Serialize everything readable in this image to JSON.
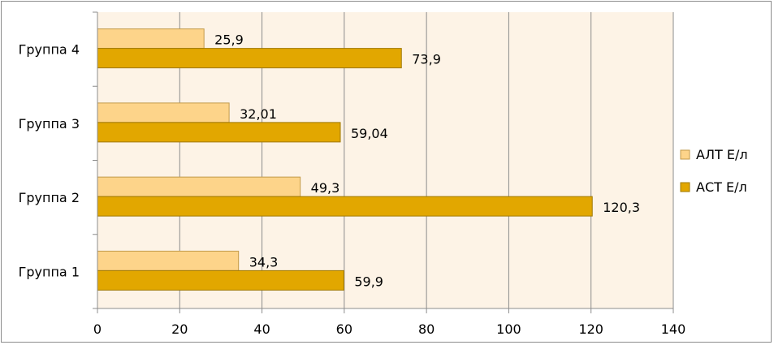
{
  "chart_data": {
    "type": "bar",
    "orientation": "horizontal",
    "categories": [
      "Группа 1",
      "Группа 2",
      "Группа 3",
      "Группа 4"
    ],
    "series": [
      {
        "name": "АСТ Е/л",
        "values": [
          59.9,
          120.3,
          59.04,
          73.9
        ],
        "labels": [
          "59,9",
          "120,3",
          "59,04",
          "73,9"
        ],
        "color": "#e2a700",
        "stroke": "#a07800"
      },
      {
        "name": "АЛТ Е/л",
        "values": [
          34.3,
          49.3,
          32.01,
          25.9
        ],
        "labels": [
          "34,3",
          "49,3",
          "32,01",
          "25,9"
        ],
        "color": "#fdd48a",
        "stroke": "#c29a4a"
      }
    ],
    "legend_order": [
      "АЛТ Е/л",
      "АСТ Е/л"
    ],
    "xlim": [
      0,
      140
    ],
    "xticks": [
      0,
      20,
      40,
      60,
      80,
      100,
      120,
      140
    ],
    "grid": true,
    "legend_position": "right",
    "plot_background": "#fdf3e6",
    "title": "",
    "xlabel": "",
    "ylabel": ""
  }
}
